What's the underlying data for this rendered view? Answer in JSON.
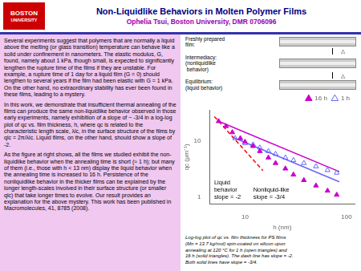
{
  "chart_data": {
    "type": "scatter",
    "title": "Non-Liquidlike Behaviors in Molten Polymer Films",
    "subtitle": "Ophelia Tsui, Boston University, DMR 0706096",
    "caption": "Log-log plot of qc vs. film thickness for PS films\n(Mn = 13.7 kg/mol) spin-coated on silicon upon\nannealing at 120 °C for 1 h (open triangles) and\n16 h (solid triangles). The dash line has slope = -2.\nBoth solid lines have slope = -3/4.",
    "annotations": [
      "BOSTON",
      "UNIVERSITY",
      "Several experiments suggest that polymers that are normally a liquid above the melting (or glass transition) temperature can behave like a solid under confinement in nanometers. The elastic modulus, G, found, namely about 1 kPa, though small, is expected to significantly lengthen the rupture time of the films if they are unstable. For example, a rupture time of 1 day for a liquid film (G = 0) should lengthen to several years if the film had been elastic with G = 1 kPa. On the other hand, no extraordinary stability has ever been found in these films, leading to a mystery.",
      "In this work, we demonstrate that insufficient thermal annealing of the films can produce the same non-liquidlike behavior observed in those early experiments, namely exhibition of a slope of ~ -3/4 in a log-log plot of qc vs. film thickness, h, where qc is related to the characteristic length scale, λlc, in the surface structure of the films by qlc = 2π/λlc. Liquid films, on the other hand, should show a slope of -2.",
      "As the figure at right shows, all the films we studied exhibit the non-liquidlike behavior when the annealing time is short (≈ 1 h); but many of them (i.e., those with h < 13 nm) display the liquid behavior when the annealing time is increased to 16 h. Persistence of the nonliquidlike behavior in the thicker films can be explained by the longer length-scales involved in their surface structure (or smaller qlc) that take longer times to evolve. Our result provides an explanation for the above mystery. This work has been published in Macromolecules, 41, 8785 (2008).",
      "Freshly prepared\nfilm:",
      "△",
      "Intermediacy:\n(nonliquidlike\n behavior)",
      "△",
      "Equilibrium:\n(liquid behavior)",
      "Liquid\nbehavior\nslope = -2",
      "Nonliquid-like\nslope = -3/4"
    ],
    "xlabel": "h (nm)",
    "ylabel": "qc (μm⁻¹)",
    "log": true,
    "grid": false,
    "legend": "upper right",
    "xlim": [
      4.5,
      120
    ],
    "ylim": [
      0.75,
      35
    ],
    "xticks": [
      10,
      100
    ],
    "yticks": [
      1,
      10
    ],
    "series": [
      {
        "name": "16 h",
        "color": "#cc00cc",
        "marker": "triangle",
        "x": [
          5.5,
          6.5,
          7.5,
          9,
          10,
          12,
          14,
          17,
          20,
          25,
          30,
          38,
          50,
          65,
          80
        ],
        "values": [
          22,
          18,
          14,
          11,
          9.5,
          8,
          6.5,
          5,
          4.0,
          3.2,
          2.5,
          2.0,
          1.6,
          1.3,
          1.1
        ]
      },
      {
        "name": "1 h",
        "color": "#6666ff",
        "marker": "open triangle",
        "x": [
          8,
          10,
          12,
          14,
          17,
          20,
          25,
          30,
          38,
          50,
          65,
          80
        ],
        "values": [
          11,
          9.0,
          8.5,
          7.5,
          6.5,
          5.8,
          5.0,
          4.5,
          4.0,
          3.5,
          3.0,
          2.7
        ]
      },
      {
        "type": "line",
        "color": "red",
        "line_style": "dashed",
        "x": [
          5,
          15
        ],
        "values": [
          26.62,
          2.957777777777778
        ]
      },
      {
        "type": "line",
        "color": "#cc00cc",
        "line_style": "solid",
        "x": [
          5.5,
          85
        ],
        "values": [
          22,
          2.82247
        ]
      },
      {
        "type": "line",
        "color": "#6666ff",
        "line_style": "solid",
        "x": [
          7.5,
          85
        ],
        "values": [
          11.54554,
          1.86915
        ]
      }
    ]
  }
}
